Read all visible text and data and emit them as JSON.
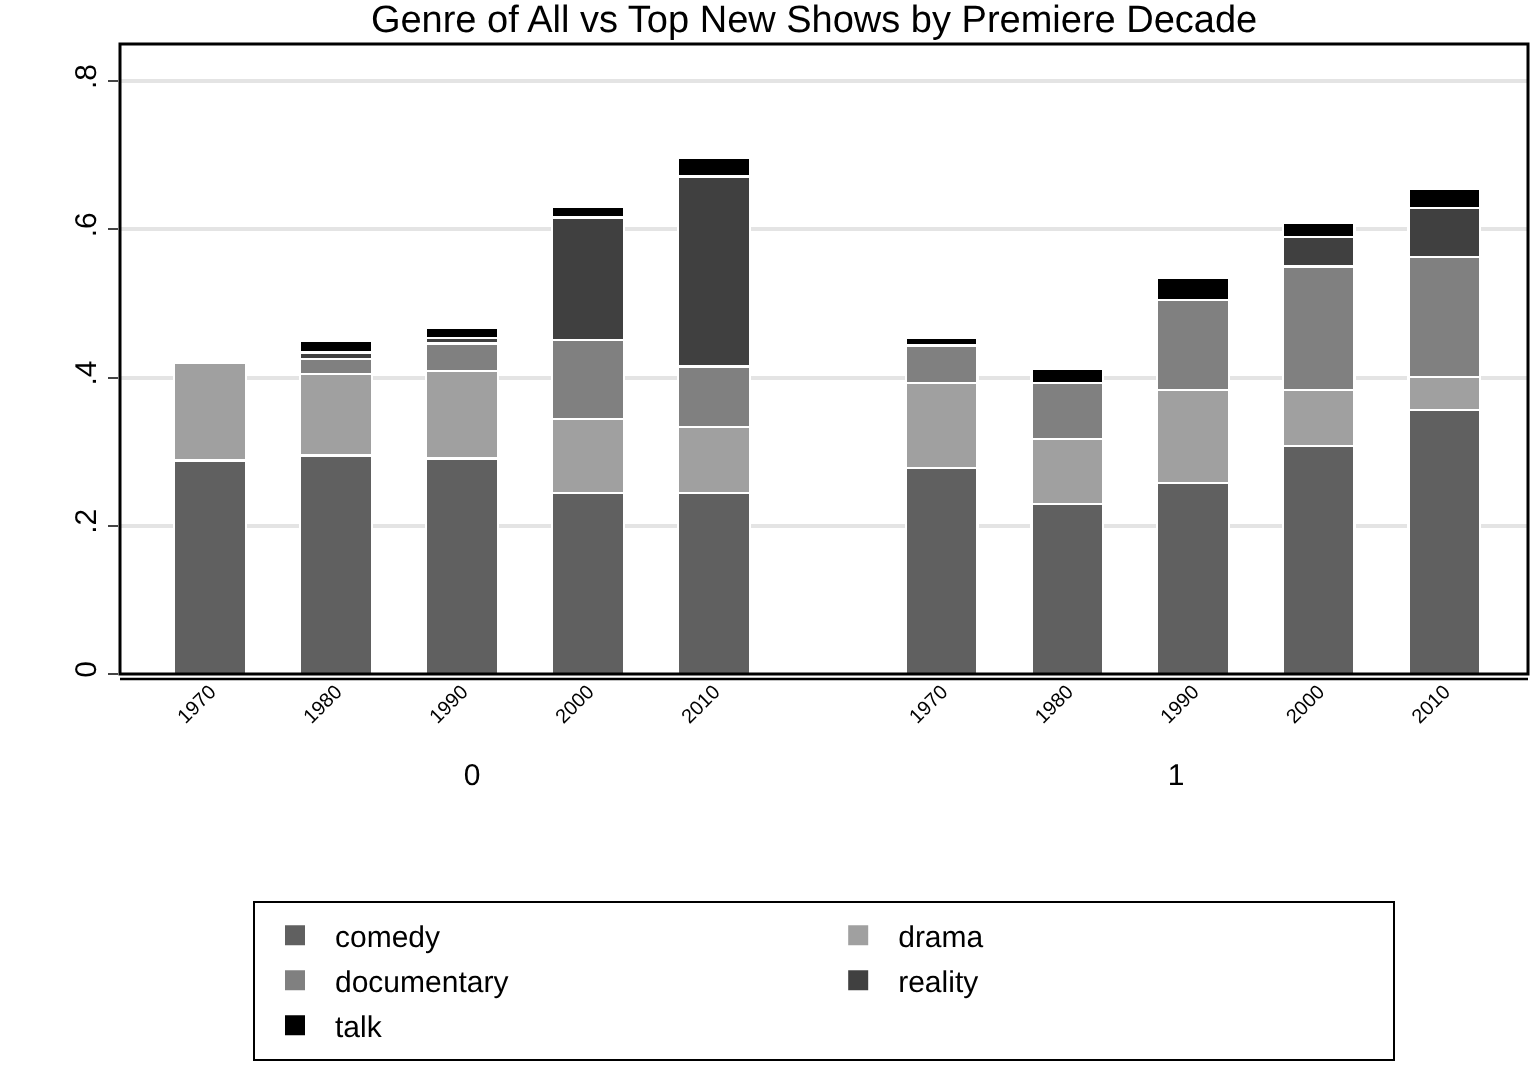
{
  "chart_data": [
    {
      "type": "bar",
      "stacked": true,
      "title": "Genre of All vs Top New Shows by Premiere Decade",
      "xlabel": "0",
      "categories": [
        "1970",
        "1980",
        "1990",
        "2000",
        "2010"
      ],
      "ylim": [
        0,
        0.85
      ],
      "yticks": [
        0,
        {
          "value": 0.2,
          "label": ".2"
        },
        {
          "value": 0.4,
          "label": ".4"
        },
        {
          "value": 0.6,
          "label": ".6"
        },
        {
          "value": 0.8,
          "label": ".8"
        }
      ],
      "grid": "y",
      "legend": "bottom",
      "series": [
        {
          "name": "comedy",
          "color": "#606060",
          "values": [
            0.288,
            0.295,
            0.291,
            0.244,
            0.244
          ]
        },
        {
          "name": "drama",
          "color": "#a0a0a0",
          "values": [
            0.132,
            0.11,
            0.118,
            0.1,
            0.089
          ]
        },
        {
          "name": "documentary",
          "color": "#808080",
          "values": [
            null,
            0.02,
            0.037,
            0.107,
            0.082
          ]
        },
        {
          "name": "reality",
          "color": "#404040",
          "values": [
            null,
            0.009,
            0.007,
            0.165,
            0.256
          ]
        },
        {
          "name": "talk",
          "color": "#000000",
          "values": [
            null,
            0.015,
            0.014,
            0.015,
            0.026
          ]
        }
      ]
    },
    {
      "type": "bar",
      "stacked": true,
      "xlabel": "1",
      "categories": [
        "1970",
        "1980",
        "1990",
        "2000",
        "2010"
      ],
      "ylim": [
        0,
        0.85
      ],
      "grid": "y",
      "legend": "bottom",
      "tick_labels": "x",
      "series": [
        {
          "name": "comedy",
          "color": "#606060",
          "values": [
            0.278,
            0.229,
            0.258,
            0.308,
            0.356
          ]
        },
        {
          "name": "drama",
          "color": "#a0a0a0",
          "values": [
            0.115,
            0.088,
            0.125,
            0.075,
            0.045
          ]
        },
        {
          "name": "documentary",
          "color": "#808080",
          "values": [
            0.05,
            0.076,
            0.122,
            0.167,
            0.162
          ]
        },
        {
          "name": "reality",
          "color": "#404040",
          "values": [
            null,
            null,
            null,
            0.04,
            0.066
          ]
        },
        {
          "name": "talk",
          "color": "#000000",
          "values": [
            0.01,
            0.019,
            0.029,
            0.019,
            0.025
          ]
        }
      ]
    }
  ]
}
